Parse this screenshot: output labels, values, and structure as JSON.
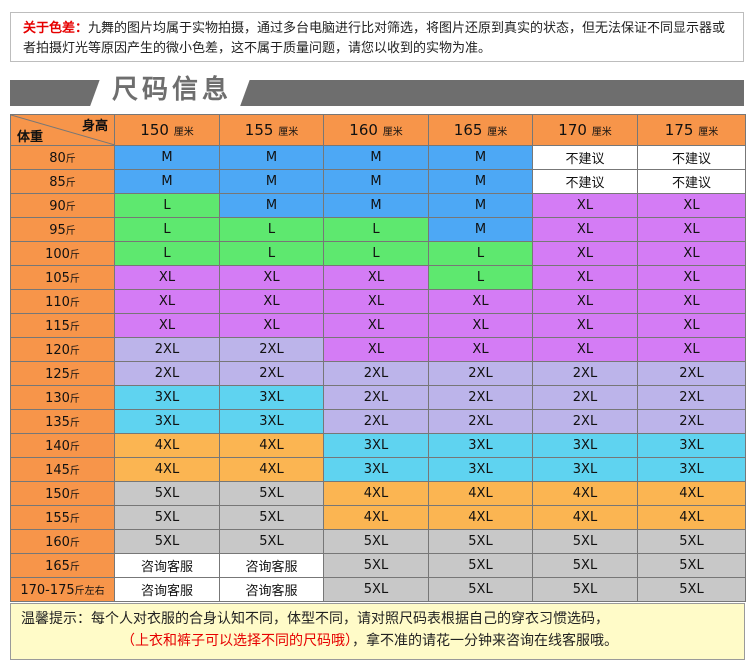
{
  "notice": {
    "label": "关于色差：",
    "text": "九舞的图片均属于实物拍摄，通过多台电脑进行比对筛选，将图片还原到真实的状态，但无法保证不同显示器或者拍摄灯光等原因产生的微小色差，这不属于质量问题，请您以收到的实物为准。"
  },
  "banner": {
    "title": "尺码信息"
  },
  "table": {
    "corner_height": "身高",
    "corner_weight": "体重",
    "unit_height": "厘米",
    "unit_weight": "斤",
    "heights": [
      "150",
      "155",
      "160",
      "165",
      "170",
      "175"
    ],
    "rows": [
      {
        "weight": "80",
        "cells": [
          "M",
          "M",
          "M",
          "M",
          "不建议",
          "不建议"
        ],
        "cls": [
          "M",
          "M",
          "M",
          "M",
          "NA",
          "NA"
        ]
      },
      {
        "weight": "85",
        "cells": [
          "M",
          "M",
          "M",
          "M",
          "不建议",
          "不建议"
        ],
        "cls": [
          "M",
          "M",
          "M",
          "M",
          "NA",
          "NA"
        ]
      },
      {
        "weight": "90",
        "cells": [
          "L",
          "M",
          "M",
          "M",
          "XL",
          "XL"
        ],
        "cls": [
          "L",
          "M",
          "M",
          "M",
          "XL",
          "XL"
        ]
      },
      {
        "weight": "95",
        "cells": [
          "L",
          "L",
          "L",
          "M",
          "XL",
          "XL"
        ],
        "cls": [
          "L",
          "L",
          "L",
          "M",
          "XL",
          "XL"
        ]
      },
      {
        "weight": "100",
        "cells": [
          "L",
          "L",
          "L",
          "L",
          "XL",
          "XL"
        ],
        "cls": [
          "L",
          "L",
          "L",
          "L",
          "XL",
          "XL"
        ]
      },
      {
        "weight": "105",
        "cells": [
          "XL",
          "XL",
          "XL",
          "L",
          "XL",
          "XL"
        ],
        "cls": [
          "XL",
          "XL",
          "XL",
          "L",
          "XL",
          "XL"
        ]
      },
      {
        "weight": "110",
        "cells": [
          "XL",
          "XL",
          "XL",
          "XL",
          "XL",
          "XL"
        ],
        "cls": [
          "XL",
          "XL",
          "XL",
          "XL",
          "XL",
          "XL"
        ]
      },
      {
        "weight": "115",
        "cells": [
          "XL",
          "XL",
          "XL",
          "XL",
          "XL",
          "XL"
        ],
        "cls": [
          "XL",
          "XL",
          "XL",
          "XL",
          "XL",
          "XL"
        ]
      },
      {
        "weight": "120",
        "cells": [
          "2XL",
          "2XL",
          "XL",
          "XL",
          "XL",
          "XL"
        ],
        "cls": [
          "XXL",
          "XXL",
          "XL",
          "XL",
          "XL",
          "XL"
        ]
      },
      {
        "weight": "125",
        "cells": [
          "2XL",
          "2XL",
          "2XL",
          "2XL",
          "2XL",
          "2XL"
        ],
        "cls": [
          "XXL",
          "XXL",
          "XXL",
          "XXL",
          "XXL",
          "XXL"
        ]
      },
      {
        "weight": "130",
        "cells": [
          "3XL",
          "3XL",
          "2XL",
          "2XL",
          "2XL",
          "2XL"
        ],
        "cls": [
          "XXXL",
          "XXXL",
          "XXL",
          "XXL",
          "XXL",
          "XXL"
        ]
      },
      {
        "weight": "135",
        "cells": [
          "3XL",
          "3XL",
          "2XL",
          "2XL",
          "2XL",
          "2XL"
        ],
        "cls": [
          "XXXL",
          "XXXL",
          "XXL",
          "XXL",
          "XXL",
          "XXL"
        ]
      },
      {
        "weight": "140",
        "cells": [
          "4XL",
          "4XL",
          "3XL",
          "3XL",
          "3XL",
          "3XL"
        ],
        "cls": [
          "XXXXL",
          "XXXXL",
          "XXXL",
          "XXXL",
          "XXXL",
          "XXXL"
        ]
      },
      {
        "weight": "145",
        "cells": [
          "4XL",
          "4XL",
          "3XL",
          "3XL",
          "3XL",
          "3XL"
        ],
        "cls": [
          "XXXXL",
          "XXXXL",
          "XXXL",
          "XXXL",
          "XXXL",
          "XXXL"
        ]
      },
      {
        "weight": "150",
        "cells": [
          "5XL",
          "5XL",
          "4XL",
          "4XL",
          "4XL",
          "4XL"
        ],
        "cls": [
          "XXXXXL",
          "XXXXXL",
          "XXXXL",
          "XXXXL",
          "XXXXL",
          "XXXXL"
        ]
      },
      {
        "weight": "155",
        "cells": [
          "5XL",
          "5XL",
          "4XL",
          "4XL",
          "4XL",
          "4XL"
        ],
        "cls": [
          "XXXXXL",
          "XXXXXL",
          "XXXXL",
          "XXXXL",
          "XXXXL",
          "XXXXL"
        ]
      },
      {
        "weight": "160",
        "cells": [
          "5XL",
          "5XL",
          "5XL",
          "5XL",
          "5XL",
          "5XL"
        ],
        "cls": [
          "XXXXXL",
          "XXXXXL",
          "XXXXXL",
          "XXXXXL",
          "XXXXXL",
          "XXXXXL"
        ]
      },
      {
        "weight": "165",
        "cells": [
          "咨询客服",
          "咨询客服",
          "5XL",
          "5XL",
          "5XL",
          "5XL"
        ],
        "cls": [
          "NA",
          "NA",
          "XXXXXL",
          "XXXXXL",
          "XXXXXL",
          "XXXXXL"
        ]
      },
      {
        "weight": "170-175",
        "weight_unit": "斤左右",
        "cells": [
          "咨询客服",
          "咨询客服",
          "5XL",
          "5XL",
          "5XL",
          "5XL"
        ],
        "cls": [
          "NA",
          "NA",
          "XXXXXL",
          "XXXXXL",
          "XXXXXL",
          "XXXXXL"
        ]
      }
    ]
  },
  "tip": {
    "line1": "温馨提示：每个人对衣服的合身认知不同，体型不同，请对照尺码表根据自己的穿衣习惯选码，",
    "line2_red": "（上衣和裤子可以选择不同的尺码哦）",
    "line2": "，拿不准的请花一分钟来咨询在线客服哦。"
  },
  "colors": {
    "header": "#f7954a",
    "M": "#4da8f5",
    "L": "#5ee86f",
    "XL": "#d47cf5",
    "2XL": "#bcb4ea",
    "3XL": "#5fd3f0",
    "4XL": "#fbb552",
    "5XL": "#c8c8c8",
    "banner": "#6e6e6e",
    "tip_bg": "#fffbc8",
    "accent_red": "#e60000"
  }
}
